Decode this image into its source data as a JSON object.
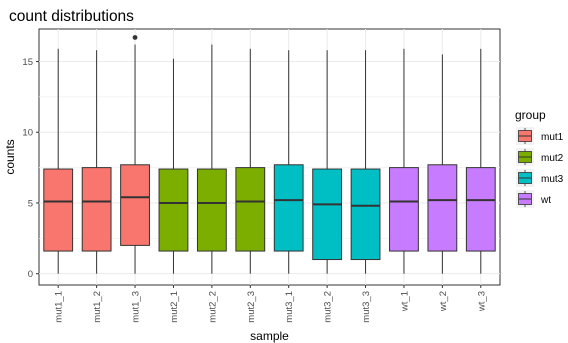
{
  "chart_data": {
    "type": "boxplot",
    "title": "count distributions",
    "xlabel": "sample",
    "ylabel": "counts",
    "ylim": [
      -0.8,
      17.3
    ],
    "yticks": [
      0,
      5,
      10,
      15
    ],
    "grid": true,
    "legend_position": "right",
    "legend": {
      "title": "group",
      "entries": [
        {
          "label": "mut1",
          "color": "#F8766D"
        },
        {
          "label": "mut2",
          "color": "#7CAE00"
        },
        {
          "label": "mut3",
          "color": "#00BFC4"
        },
        {
          "label": "wt",
          "color": "#C77CFF"
        }
      ]
    },
    "categories": [
      "mut1_1",
      "mut1_2",
      "mut1_3",
      "mut2_1",
      "mut2_2",
      "mut2_3",
      "mut3_1",
      "mut3_2",
      "mut3_3",
      "wt_1",
      "wt_2",
      "wt_3"
    ],
    "boxes": [
      {
        "sample": "mut1_1",
        "group": "mut1",
        "min": 0,
        "q1": 1.6,
        "median": 5.1,
        "q3": 7.4,
        "max": 15.9,
        "outliers": []
      },
      {
        "sample": "mut1_2",
        "group": "mut1",
        "min": 0,
        "q1": 1.6,
        "median": 5.1,
        "q3": 7.5,
        "max": 15.8,
        "outliers": []
      },
      {
        "sample": "mut1_3",
        "group": "mut1",
        "min": 0,
        "q1": 2.0,
        "median": 5.4,
        "q3": 7.7,
        "max": 16.2,
        "outliers": [
          16.7
        ]
      },
      {
        "sample": "mut2_1",
        "group": "mut2",
        "min": 0,
        "q1": 1.6,
        "median": 5.0,
        "q3": 7.4,
        "max": 15.2,
        "outliers": []
      },
      {
        "sample": "mut2_2",
        "group": "mut2",
        "min": 0,
        "q1": 1.6,
        "median": 5.0,
        "q3": 7.4,
        "max": 16.2,
        "outliers": []
      },
      {
        "sample": "mut2_3",
        "group": "mut2",
        "min": 0,
        "q1": 1.6,
        "median": 5.1,
        "q3": 7.5,
        "max": 15.9,
        "outliers": []
      },
      {
        "sample": "mut3_1",
        "group": "mut3",
        "min": 0,
        "q1": 1.6,
        "median": 5.2,
        "q3": 7.7,
        "max": 15.8,
        "outliers": []
      },
      {
        "sample": "mut3_2",
        "group": "mut3",
        "min": 0,
        "q1": 1.0,
        "median": 4.9,
        "q3": 7.4,
        "max": 15.8,
        "outliers": []
      },
      {
        "sample": "mut3_3",
        "group": "mut3",
        "min": 0,
        "q1": 1.0,
        "median": 4.8,
        "q3": 7.4,
        "max": 15.8,
        "outliers": []
      },
      {
        "sample": "wt_1",
        "group": "wt",
        "min": 0,
        "q1": 1.6,
        "median": 5.1,
        "q3": 7.5,
        "max": 15.9,
        "outliers": []
      },
      {
        "sample": "wt_2",
        "group": "wt",
        "min": 0,
        "q1": 1.6,
        "median": 5.2,
        "q3": 7.7,
        "max": 15.5,
        "outliers": []
      },
      {
        "sample": "wt_3",
        "group": "wt",
        "min": 0,
        "q1": 1.6,
        "median": 5.2,
        "q3": 7.5,
        "max": 15.9,
        "outliers": []
      }
    ]
  }
}
